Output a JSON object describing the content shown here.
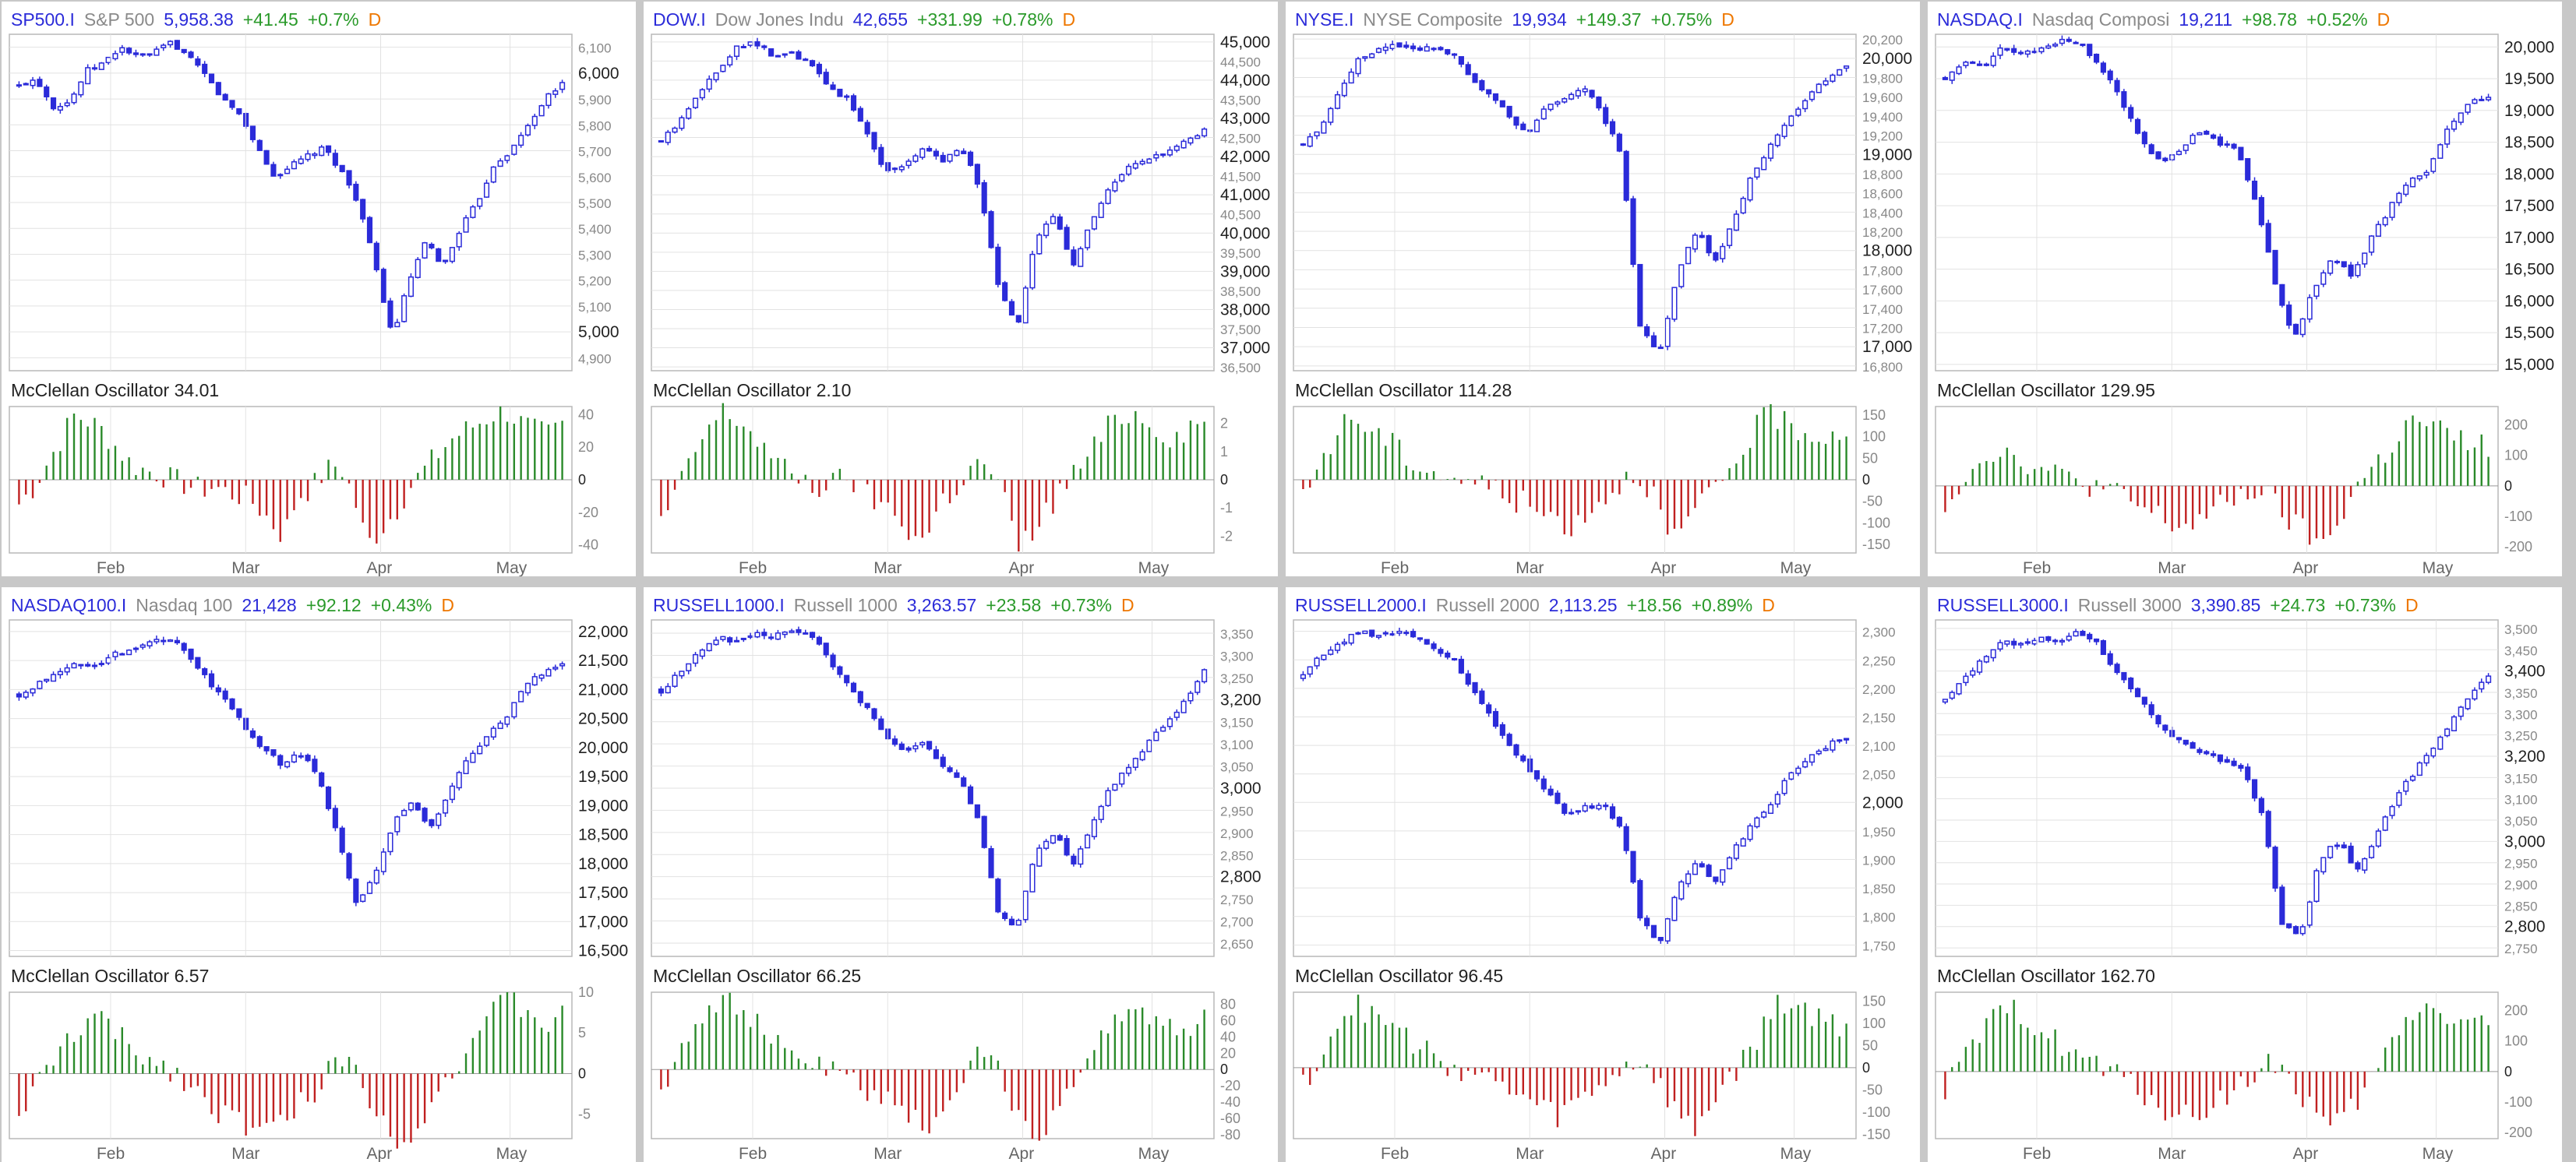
{
  "colors": {
    "up": "#2b2bd9",
    "down": "#2b2bd9",
    "pos": "#2a8a2a",
    "neg": "#c02020",
    "grid": "#e2e2e2",
    "frame": "#b8b8b8",
    "symbol": "#2b2bd9",
    "name": "#8a8a8a",
    "change": "#2a9a2a",
    "period": "#ee7700"
  },
  "panels": [
    {
      "symbol": "SP500.I",
      "name": "S&P 500",
      "price": "5,958.38",
      "change": "+41.45",
      "pct": "+0.7%",
      "period": "D",
      "osc_label": "McClellan Oscillator 34.01",
      "price_ticks": [
        "6,100",
        "6,000",
        "5,900",
        "5,800",
        "5,700",
        "5,600",
        "5,500",
        "5,400",
        "5,300",
        "5,200",
        "5,100",
        "5,000",
        "4,900"
      ],
      "osc_ticks": [
        "40",
        "20",
        "0",
        "-20",
        "-40"
      ],
      "months": [
        "Feb",
        "Mar",
        "Apr",
        "May"
      ]
    },
    {
      "symbol": "DOW.I",
      "name": "Dow Jones Indu",
      "price": "42,655",
      "change": "+331.99",
      "pct": "+0.78%",
      "period": "D",
      "osc_label": "McClellan Oscillator 2.10",
      "price_ticks": [
        "45,000",
        "44,500",
        "44,000",
        "43,500",
        "43,000",
        "42,500",
        "42,000",
        "41,500",
        "41,000",
        "40,500",
        "40,000",
        "39,500",
        "39,000",
        "38,500",
        "38,000",
        "37,500",
        "37,000",
        "36,500"
      ],
      "osc_ticks": [
        "2",
        "1",
        "0",
        "-1",
        "-2"
      ],
      "months": [
        "Feb",
        "Mar",
        "Apr",
        "May"
      ]
    },
    {
      "symbol": "NYSE.I",
      "name": "NYSE Composite",
      "price": "19,934",
      "change": "+149.37",
      "pct": "+0.75%",
      "period": "D",
      "osc_label": "McClellan Oscillator 114.28",
      "price_ticks": [
        "20,200",
        "20,000",
        "19,800",
        "19,600",
        "19,400",
        "19,200",
        "19,000",
        "18,800",
        "18,600",
        "18,400",
        "18,200",
        "18,000",
        "17,800",
        "17,600",
        "17,400",
        "17,200",
        "17,000",
        "16,800"
      ],
      "osc_ticks": [
        "150",
        "100",
        "50",
        "0",
        "-50",
        "-100",
        "-150"
      ],
      "months": [
        "Feb",
        "Mar",
        "Apr",
        "May"
      ]
    },
    {
      "symbol": "NASDAQ.I",
      "name": "Nasdaq Composi",
      "price": "19,211",
      "change": "+98.78",
      "pct": "+0.52%",
      "period": "D",
      "osc_label": "McClellan Oscillator 129.95",
      "price_ticks": [
        "20,000",
        "19,500",
        "19,000",
        "18,500",
        "18,000",
        "17,500",
        "17,000",
        "16,500",
        "16,000",
        "15,500",
        "15,000"
      ],
      "osc_ticks": [
        "200",
        "100",
        "0",
        "-100",
        "-200"
      ],
      "months": [
        "Feb",
        "Mar",
        "Apr",
        "May"
      ]
    },
    {
      "symbol": "NASDAQ100.I",
      "name": "Nasdaq 100",
      "price": "21,428",
      "change": "+92.12",
      "pct": "+0.43%",
      "period": "D",
      "osc_label": "McClellan Oscillator 6.57",
      "price_ticks": [
        "22,000",
        "21,500",
        "21,000",
        "20,500",
        "20,000",
        "19,500",
        "19,000",
        "18,500",
        "18,000",
        "17,500",
        "17,000",
        "16,500"
      ],
      "osc_ticks": [
        "10",
        "5",
        "0",
        "-5"
      ],
      "months": [
        "Feb",
        "Mar",
        "Apr",
        "May"
      ]
    },
    {
      "symbol": "RUSSELL1000.I",
      "name": "Russell 1000",
      "price": "3,263.57",
      "change": "+23.58",
      "pct": "+0.73%",
      "period": "D",
      "osc_label": "McClellan Oscillator 66.25",
      "price_ticks": [
        "3,350",
        "3,300",
        "3,250",
        "3,200",
        "3,150",
        "3,100",
        "3,050",
        "3,000",
        "2,950",
        "2,900",
        "2,850",
        "2,800",
        "2,750",
        "2,700",
        "2,650"
      ],
      "osc_ticks": [
        "80",
        "60",
        "40",
        "20",
        "0",
        "-20",
        "-40",
        "-60",
        "-80"
      ],
      "months": [
        "Feb",
        "Mar",
        "Apr",
        "May"
      ]
    },
    {
      "symbol": "RUSSELL2000.I",
      "name": "Russell 2000",
      "price": "2,113.25",
      "change": "+18.56",
      "pct": "+0.89%",
      "period": "D",
      "osc_label": "McClellan Oscillator 96.45",
      "price_ticks": [
        "2,300",
        "2,250",
        "2,200",
        "2,150",
        "2,100",
        "2,050",
        "2,000",
        "1,950",
        "1,900",
        "1,850",
        "1,800",
        "1,750"
      ],
      "osc_ticks": [
        "150",
        "100",
        "50",
        "0",
        "-50",
        "-100",
        "-150"
      ],
      "months": [
        "Feb",
        "Mar",
        "Apr",
        "May"
      ]
    },
    {
      "symbol": "RUSSELL3000.I",
      "name": "Russell 3000",
      "price": "3,390.85",
      "change": "+24.73",
      "pct": "+0.73%",
      "period": "D",
      "osc_label": "McClellan Oscillator 162.70",
      "price_ticks": [
        "3,500",
        "3,450",
        "3,400",
        "3,350",
        "3,300",
        "3,250",
        "3,200",
        "3,150",
        "3,100",
        "3,050",
        "3,000",
        "2,950",
        "2,900",
        "2,850",
        "2,800",
        "2,750"
      ],
      "osc_ticks": [
        "200",
        "100",
        "0",
        "-100",
        "-200"
      ],
      "months": [
        "Feb",
        "Mar",
        "Apr",
        "May"
      ]
    }
  ],
  "chart_data": [
    {
      "type": "candlestick",
      "title": "SP500.I",
      "close_path": [
        5950,
        5980,
        5870,
        5890,
        6010,
        6040,
        6100,
        6060,
        6080,
        6120,
        6060,
        5990,
        5900,
        5840,
        5720,
        5600,
        5640,
        5680,
        5710,
        5620,
        5500,
        5250,
        4980,
        5200,
        5350,
        5250,
        5400,
        5500,
        5650,
        5700,
        5800,
        5900,
        5958
      ],
      "ylim": [
        4850,
        6150
      ],
      "oscillator": [
        -15,
        -5,
        10,
        25,
        40,
        36,
        30,
        20,
        10,
        6,
        4,
        0,
        -3,
        -6,
        -4,
        -8,
        -10,
        -15,
        -25,
        -35,
        -10,
        -5,
        5,
        10,
        -10,
        -40,
        -30,
        -20,
        -5,
        5,
        15,
        25,
        30,
        35,
        40,
        42,
        35,
        30,
        28,
        34
      ],
      "osc_ylim": [
        -45,
        45
      ]
    },
    {
      "type": "candlestick",
      "title": "DOW.I",
      "close_path": [
        42400,
        42900,
        43700,
        44200,
        44900,
        45000,
        44600,
        44700,
        44400,
        43800,
        43500,
        42600,
        41600,
        41800,
        42200,
        41900,
        42300,
        41200,
        38600,
        37500,
        39800,
        40500,
        39200,
        40300,
        41200,
        41700,
        41900,
        42100,
        42400,
        42655
      ],
      "ylim": [
        36400,
        45200
      ],
      "oscillator": [
        -1.5,
        -0.5,
        0.8,
        1.8,
        2.4,
        2.1,
        1.6,
        0.9,
        0.3,
        0.1,
        -0.3,
        -0.2,
        0.2,
        -0.5,
        -0.8,
        -1.2,
        -1.8,
        -2.2,
        -0.8,
        -0.3,
        0.4,
        0.6,
        -0.5,
        -2.5,
        -1.8,
        -1.0,
        -0.2,
        0.5,
        1.2,
        2.0,
        2.4,
        2.2,
        1.8,
        1.5,
        1.9,
        2.1
      ],
      "osc_ylim": [
        -2.6,
        2.6
      ]
    },
    {
      "type": "candlestick",
      "title": "NYSE.I",
      "close_path": [
        19100,
        19300,
        19700,
        20000,
        20100,
        20150,
        20100,
        20120,
        20050,
        19800,
        19600,
        19400,
        19200,
        19500,
        19600,
        19700,
        19400,
        19000,
        17200,
        16900,
        17800,
        18200,
        17900,
        18300,
        18800,
        19100,
        19400,
        19600,
        19800,
        19934
      ],
      "ylim": [
        16750,
        20250
      ],
      "oscillator": [
        -50,
        40,
        100,
        150,
        120,
        100,
        70,
        40,
        20,
        10,
        0,
        -10,
        -20,
        -40,
        -60,
        -80,
        -90,
        -110,
        -60,
        -40,
        0,
        20,
        -40,
        -150,
        -100,
        -60,
        -10,
        40,
        100,
        150,
        140,
        120,
        100,
        110,
        114
      ],
      "osc_ylim": [
        -170,
        170
      ]
    },
    {
      "type": "candlestick",
      "title": "NASDAQ.I",
      "close_path": [
        19500,
        19800,
        19700,
        20000,
        19900,
        19950,
        20100,
        20050,
        19700,
        19200,
        18600,
        18200,
        18300,
        18700,
        18500,
        18400,
        17600,
        16300,
        15400,
        16200,
        16700,
        16400,
        17000,
        17500,
        17900,
        18100,
        18800,
        19100,
        19211
      ],
      "ylim": [
        14900,
        20200
      ],
      "oscillator": [
        -60,
        20,
        80,
        120,
        100,
        80,
        50,
        30,
        20,
        0,
        -20,
        -40,
        -80,
        -100,
        -140,
        -120,
        -100,
        -60,
        -30,
        -10,
        -60,
        -120,
        -160,
        -200,
        -100,
        0,
        60,
        120,
        200,
        210,
        180,
        150,
        140,
        130
      ],
      "osc_ylim": [
        -220,
        260
      ]
    },
    {
      "type": "candlestick",
      "title": "NASDAQ100.I",
      "close_path": [
        20900,
        21100,
        21300,
        21500,
        21400,
        21600,
        21700,
        21800,
        21900,
        21600,
        21200,
        20800,
        20400,
        20000,
        19700,
        19900,
        19500,
        18500,
        17300,
        17800,
        18700,
        19100,
        18600,
        19300,
        19800,
        20200,
        20500,
        21100,
        21300,
        21428
      ],
      "ylim": [
        16400,
        22200
      ],
      "oscillator": [
        -5,
        -2,
        1,
        4,
        6,
        7,
        5,
        3,
        2,
        1,
        0,
        -2,
        -4,
        -5,
        -6,
        -7,
        -7,
        -5,
        -3,
        -1,
        2,
        1,
        -3,
        -7,
        -8,
        -6,
        -3,
        0,
        3,
        6,
        8,
        9,
        7,
        6,
        7
      ],
      "osc_ylim": [
        -8,
        10
      ]
    },
    {
      "type": "candlestick",
      "title": "RUSSELL1000.I",
      "close_path": [
        3220,
        3260,
        3310,
        3340,
        3330,
        3350,
        3340,
        3360,
        3350,
        3290,
        3230,
        3180,
        3120,
        3080,
        3100,
        3050,
        3020,
        2920,
        2720,
        2680,
        2860,
        2900,
        2830,
        2920,
        3000,
        3050,
        3100,
        3150,
        3200,
        3263
      ],
      "ylim": [
        2620,
        3380
      ],
      "oscillator": [
        -30,
        20,
        60,
        80,
        90,
        70,
        50,
        30,
        20,
        10,
        0,
        -10,
        -20,
        -30,
        -40,
        -60,
        -70,
        -50,
        -20,
        10,
        20,
        -30,
        -60,
        -80,
        -50,
        -20,
        10,
        40,
        70,
        80,
        60,
        50,
        55,
        66
      ],
      "osc_ylim": [
        -85,
        95
      ]
    },
    {
      "type": "candlestick",
      "title": "RUSSELL2000.I",
      "close_path": [
        2220,
        2260,
        2280,
        2300,
        2290,
        2300,
        2290,
        2270,
        2250,
        2200,
        2150,
        2100,
        2060,
        2020,
        1980,
        1990,
        2000,
        1950,
        1800,
        1750,
        1850,
        1900,
        1860,
        1920,
        1960,
        2000,
        2050,
        2080,
        2100,
        2113
      ],
      "ylim": [
        1730,
        2320
      ],
      "oscillator": [
        -40,
        30,
        100,
        140,
        120,
        100,
        70,
        40,
        20,
        0,
        -10,
        -30,
        -50,
        -70,
        -90,
        -110,
        -80,
        -60,
        -20,
        0,
        20,
        -40,
        -100,
        -150,
        -80,
        -30,
        20,
        80,
        150,
        140,
        120,
        100,
        96
      ],
      "osc_ylim": [
        -160,
        170
      ]
    },
    {
      "type": "candlestick",
      "title": "RUSSELL3000.I",
      "close_path": [
        3330,
        3380,
        3430,
        3470,
        3460,
        3480,
        3470,
        3490,
        3470,
        3410,
        3350,
        3300,
        3250,
        3220,
        3200,
        3190,
        3160,
        3050,
        2800,
        2780,
        2960,
        3000,
        2930,
        3010,
        3100,
        3160,
        3220,
        3280,
        3340,
        3390
      ],
      "ylim": [
        2730,
        3520
      ],
      "oscillator": [
        -60,
        30,
        120,
        180,
        200,
        160,
        120,
        80,
        40,
        10,
        -20,
        -60,
        -100,
        -140,
        -150,
        -120,
        -80,
        -40,
        0,
        40,
        -60,
        -120,
        -200,
        -140,
        -60,
        40,
        140,
        220,
        200,
        180,
        160,
        163
      ],
      "osc_ylim": [
        -220,
        260
      ]
    }
  ]
}
